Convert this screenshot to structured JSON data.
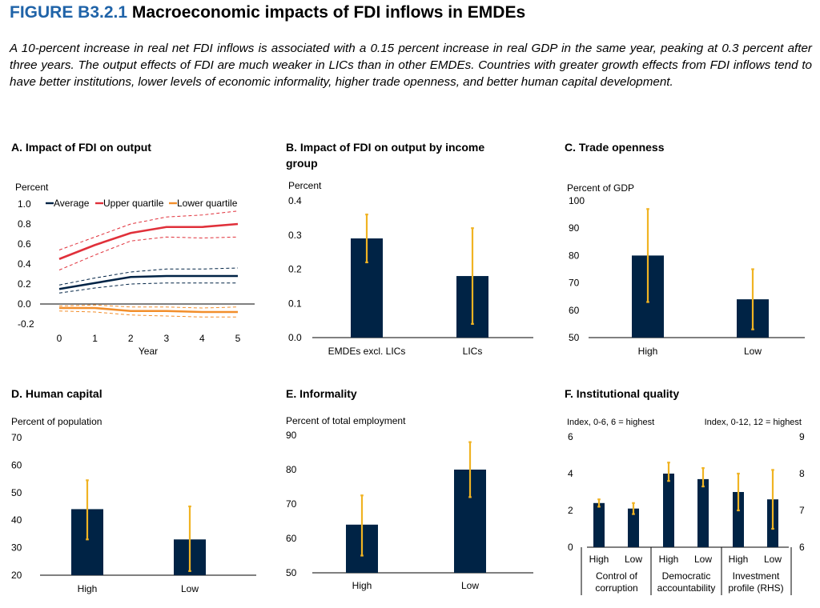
{
  "figure": {
    "number": "FIGURE B3.2.1",
    "title": "Macroeconomic impacts of FDI inflows in EMDEs",
    "caption": "A 10-percent increase in real net FDI inflows is associated with a 0.15 percent increase in real GDP in the same year, peaking at 0.3 percent after three years. The output effects of FDI are much weaker in LICs than in other EMDEs. Countries with greater growth effects from FDI inflows tend to have better institutions, lower levels of economic informality, higher trade openness, and better human capital development."
  },
  "colors": {
    "bar": "#002345",
    "error": "#f0b323",
    "average": "#002345",
    "upper": "#e0303a",
    "lower": "#f28e2b"
  },
  "chart_data": [
    {
      "id": "A",
      "type": "line",
      "title": "A. Impact of FDI on output",
      "ylabel": "Percent",
      "xlabel": "Year",
      "x": [
        0,
        1,
        2,
        3,
        4,
        5
      ],
      "ylim": [
        -0.2,
        1.0
      ],
      "yticks": [
        "1.0",
        "0.8",
        "0.6",
        "0.4",
        "0.2",
        "0.0",
        "-0.2"
      ],
      "xticks": [
        "0",
        "1",
        "2",
        "3",
        "4",
        "5"
      ],
      "legend_position": "top",
      "series": [
        {
          "name": "Average",
          "values": [
            0.15,
            0.21,
            0.27,
            0.28,
            0.28,
            0.28
          ],
          "band_low": [
            0.11,
            0.16,
            0.2,
            0.21,
            0.21,
            0.21
          ],
          "band_high": [
            0.19,
            0.26,
            0.32,
            0.35,
            0.35,
            0.36
          ]
        },
        {
          "name": "Upper quartile",
          "values": [
            0.45,
            0.59,
            0.71,
            0.77,
            0.77,
            0.8
          ],
          "band_low": [
            0.34,
            0.49,
            0.63,
            0.67,
            0.66,
            0.67
          ],
          "band_high": [
            0.54,
            0.67,
            0.8,
            0.87,
            0.89,
            0.93
          ]
        },
        {
          "name": "Lower quartile",
          "values": [
            -0.04,
            -0.04,
            -0.07,
            -0.07,
            -0.08,
            -0.08
          ],
          "band_low": [
            -0.07,
            -0.08,
            -0.11,
            -0.12,
            -0.13,
            -0.13
          ],
          "band_high": [
            -0.02,
            -0.01,
            -0.03,
            -0.03,
            -0.04,
            -0.03
          ]
        }
      ]
    },
    {
      "id": "B",
      "type": "bar",
      "title_lines": [
        "B. Impact of FDI on output by income",
        "group"
      ],
      "ylabel": "Percent",
      "categories": [
        "EMDEs excl. LICs",
        "LICs"
      ],
      "values": [
        0.29,
        0.18
      ],
      "error_low": [
        0.22,
        0.04
      ],
      "error_high": [
        0.36,
        0.32
      ],
      "ylim": [
        0,
        0.4
      ],
      "yticks": [
        "0.4",
        "0.3",
        "0.2",
        "0.1",
        "0.0"
      ]
    },
    {
      "id": "C",
      "type": "bar",
      "title": "C. Trade openness",
      "ylabel": "Percent of GDP",
      "categories": [
        "High",
        "Low"
      ],
      "values": [
        80,
        64
      ],
      "error_low": [
        63,
        53
      ],
      "error_high": [
        97,
        75
      ],
      "ylim": [
        50,
        100
      ],
      "yticks": [
        "100",
        "90",
        "80",
        "70",
        "60",
        "50"
      ]
    },
    {
      "id": "D",
      "type": "bar",
      "title": "D. Human capital",
      "ylabel": "Percent of population",
      "categories": [
        "High",
        "Low"
      ],
      "values": [
        44,
        33
      ],
      "error_low": [
        33,
        21.5
      ],
      "error_high": [
        54.5,
        45
      ],
      "ylim": [
        20,
        70
      ],
      "yticks": [
        "70",
        "60",
        "50",
        "40",
        "30",
        "20"
      ]
    },
    {
      "id": "E",
      "type": "bar",
      "title": "E. Informality",
      "ylabel": "Percent of total employment",
      "categories": [
        "High",
        "Low"
      ],
      "values": [
        64,
        80
      ],
      "error_low": [
        55,
        72
      ],
      "error_high": [
        72.5,
        88
      ],
      "ylim": [
        50,
        90
      ],
      "yticks": [
        "90",
        "80",
        "70",
        "60",
        "50"
      ]
    },
    {
      "id": "F",
      "type": "bar",
      "title": "F. Institutional quality",
      "ylabel_left": "Index, 0-6, 6 = highest",
      "ylabel_right": "Index, 0-12, 12 = highest",
      "ylim_left": [
        0,
        6
      ],
      "ylim_right": [
        6,
        9
      ],
      "yticks_left": [
        "6",
        "4",
        "2",
        "0"
      ],
      "yticks_right": [
        "9",
        "8",
        "7",
        "6"
      ],
      "categories": [
        "High",
        "Low",
        "High",
        "Low",
        "High",
        "Low"
      ],
      "groups": [
        [
          "Control of",
          "corruption"
        ],
        [
          "Democratic",
          "accountability"
        ],
        [
          "Investment",
          "profile (RHS)"
        ]
      ],
      "values": [
        2.4,
        2.1,
        4.0,
        3.7,
        7.5,
        7.3
      ],
      "error_low": [
        2.2,
        1.8,
        3.6,
        3.3,
        7.0,
        6.5
      ],
      "error_high": [
        2.6,
        2.4,
        4.6,
        4.3,
        8.0,
        8.1
      ],
      "axis": [
        "left",
        "left",
        "left",
        "left",
        "right",
        "right"
      ]
    }
  ]
}
